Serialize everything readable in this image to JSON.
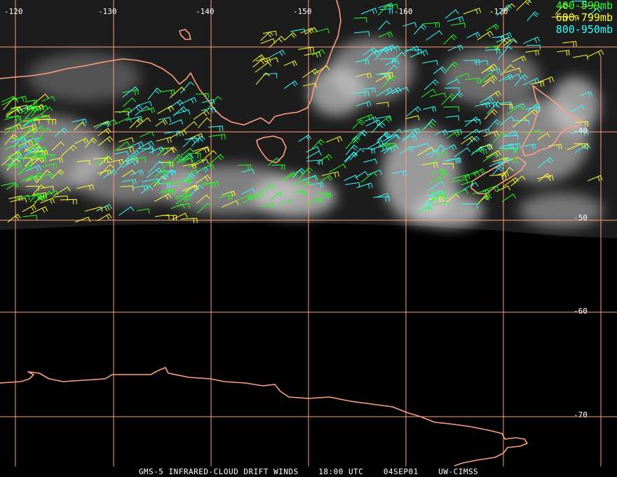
{
  "colors": {
    "coastline": "#ff9f80",
    "grid": "#ffa07a",
    "band_400_599": "#22ff22",
    "band_600_799": "#ffff33",
    "band_800_950": "#33ffff"
  },
  "longitude_labels": [
    "-120",
    "-130",
    "-140",
    "-150",
    "-160",
    "-170"
  ],
  "latitude_labels": [
    "-40",
    "-50",
    "-60",
    "-70"
  ],
  "legend": [
    {
      "label": "400-599mb",
      "color": "#22ff22"
    },
    {
      "label": "600-799mb",
      "color": "#ffff33"
    },
    {
      "label": "800-950mb",
      "color": "#33ffff"
    }
  ],
  "caption": {
    "product": "GMS-5 INFRARED-CLOUD DRIFT WINDS",
    "time": "18:00 UTC",
    "date": "04SEP01",
    "source": "UW-CIMSS"
  }
}
